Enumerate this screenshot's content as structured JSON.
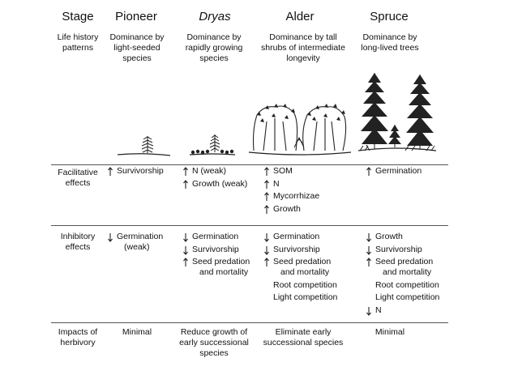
{
  "headers": [
    "Stage",
    "Pioneer",
    "Dryas",
    "Alder",
    "Spruce"
  ],
  "rows": {
    "life_history": {
      "label": "Life history patterns",
      "cells": [
        "Dominance by light-seeded species",
        "Dominance by rapidly growing species",
        "Dominance by tall shrubs of intermediate longevity",
        "Dominance by long-lived trees"
      ]
    },
    "facilitative": {
      "label": "Facilitative effects",
      "pioneer": [
        {
          "dir": "up",
          "text": "Survivorship"
        }
      ],
      "dryas": [
        {
          "dir": "up",
          "text": "N (weak)"
        },
        {
          "dir": "up",
          "text": "Growth (weak)"
        }
      ],
      "alder": [
        {
          "dir": "up",
          "text": "SOM"
        },
        {
          "dir": "up",
          "text": "N"
        },
        {
          "dir": "up",
          "text": "Mycorrhizae"
        },
        {
          "dir": "up",
          "text": "Growth"
        }
      ],
      "spruce": [
        {
          "dir": "up",
          "text": "Germination"
        }
      ]
    },
    "inhibitory": {
      "label": "Inhibitory effects",
      "pioneer": [
        {
          "dir": "down",
          "text": "Germination",
          "cont": "(weak)"
        }
      ],
      "dryas": [
        {
          "dir": "down",
          "text": "Germination"
        },
        {
          "dir": "down",
          "text": "Survivorship"
        },
        {
          "dir": "up",
          "text": "Seed predation",
          "cont": "and mortality"
        }
      ],
      "alder": [
        {
          "dir": "down",
          "text": "Germination"
        },
        {
          "dir": "down",
          "text": "Survivorship"
        },
        {
          "dir": "up",
          "text": "Seed predation",
          "cont": "and mortality"
        },
        {
          "dir": "none",
          "text": "Root competition"
        },
        {
          "dir": "none",
          "text": "Light competition"
        }
      ],
      "spruce": [
        {
          "dir": "down",
          "text": "Growth"
        },
        {
          "dir": "down",
          "text": "Survivorship"
        },
        {
          "dir": "up",
          "text": "Seed predation",
          "cont": "and mortality"
        },
        {
          "dir": "none",
          "text": "Root competition"
        },
        {
          "dir": "none",
          "text": "Light competition"
        },
        {
          "dir": "down",
          "text": "N"
        }
      ]
    },
    "herbivory": {
      "label": "Impacts of herbivory",
      "cells": [
        "Minimal",
        "Reduce growth of early successional species",
        "Eliminate early successional species",
        "Minimal"
      ]
    }
  }
}
